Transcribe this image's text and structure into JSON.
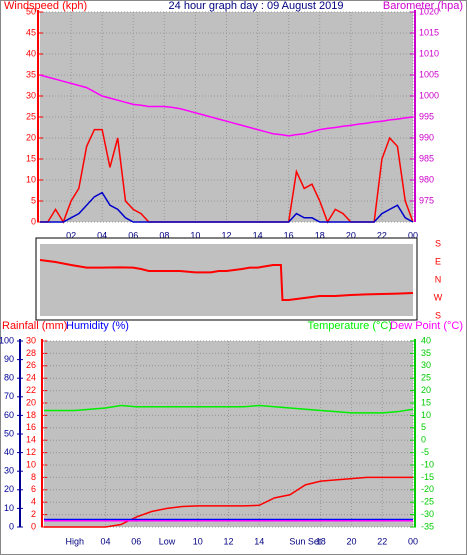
{
  "chart_data": [
    {
      "type": "line",
      "title": "24 hour graph day : 09 August 2019",
      "y_label": "Windspeed (kph)",
      "y2_label": "Barometer (hpa)",
      "ycolor": "#ff0000",
      "y2color": "#cc00cc",
      "grid": true,
      "x": [
        0,
        0.5,
        1,
        1.5,
        2,
        2.5,
        3,
        3.5,
        4,
        4.5,
        5,
        5.5,
        6,
        6.5,
        7,
        7.5,
        8,
        8.5,
        9,
        9.5,
        10,
        10.5,
        11,
        11.5,
        12,
        12.5,
        13,
        13.5,
        14,
        14.5,
        15,
        15.5,
        16,
        16.5,
        17,
        17.5,
        18,
        18.5,
        19,
        19.5,
        20,
        20.5,
        21,
        21.5,
        22,
        22.5,
        23,
        23.5,
        24
      ],
      "xlim": [
        0,
        24
      ],
      "xticks": [
        {
          "value": 2,
          "label": "02"
        },
        {
          "value": 4,
          "label": "04"
        },
        {
          "value": 6,
          "label": "06"
        },
        {
          "value": 8,
          "label": "08"
        },
        10,
        12,
        14,
        16,
        18,
        20,
        22,
        {
          "value": 24,
          "label": "00"
        }
      ],
      "ylim": [
        0,
        50
      ],
      "yticks": [
        0,
        5,
        10,
        15,
        20,
        25,
        30,
        35,
        40,
        45,
        50
      ],
      "y2lim": [
        970,
        1020
      ],
      "y2ticks": [
        975,
        980,
        985,
        990,
        995,
        1000,
        1005,
        1010,
        1015,
        1020
      ],
      "series": [
        {
          "color": "#ff0000",
          "values": [
            0,
            0,
            3,
            0,
            5,
            8,
            18,
            22,
            22,
            13,
            20,
            5,
            3,
            2,
            0,
            0,
            0,
            0,
            0,
            0,
            0,
            0,
            0,
            0,
            0,
            0,
            0,
            0,
            0,
            0,
            0,
            0,
            0,
            12,
            8,
            9,
            5,
            0,
            3,
            2,
            0,
            0,
            0,
            0,
            15,
            20,
            18,
            5,
            0
          ]
        },
        {
          "color": "#0000cc",
          "values": [
            0,
            0,
            0,
            0,
            1,
            2,
            4,
            6,
            7,
            4,
            3,
            1,
            0,
            0,
            0,
            0,
            0,
            0,
            0,
            0,
            0,
            0,
            0,
            0,
            0,
            0,
            0,
            0,
            0,
            0,
            0,
            0,
            0,
            2,
            1,
            1,
            0,
            0,
            0,
            0,
            0,
            0,
            0,
            0,
            2,
            3,
            4,
            1,
            0
          ]
        },
        {
          "color": "#ff00ff",
          "axis": "y2",
          "values": [
            1005,
            1004.5,
            1004,
            1003.5,
            1003,
            1002.5,
            1002,
            1001,
            1000,
            999.5,
            999,
            998.5,
            998,
            997.8,
            997.5,
            997.5,
            997.5,
            997.3,
            997,
            996.5,
            996,
            995.5,
            995,
            994.5,
            994,
            993.5,
            993,
            992.5,
            992,
            991.5,
            991,
            990.8,
            990.5,
            990.8,
            991,
            991.5,
            992,
            992.3,
            992.5,
            992.8,
            993,
            993.3,
            993.5,
            993.8,
            994,
            994.3,
            994.5,
            994.8,
            995
          ]
        }
      ]
    },
    {
      "type": "line",
      "ycolor": "#ff0000",
      "grid": false,
      "x": [
        0,
        1,
        2,
        3,
        4,
        5,
        6,
        6.5,
        7,
        8,
        9,
        10,
        11,
        11.5,
        12,
        13,
        13.5,
        14,
        15,
        15.5,
        15.6,
        16,
        17,
        18,
        19,
        20,
        21,
        22,
        23,
        24
      ],
      "xlim": [
        0,
        24
      ],
      "ylim": [
        -180,
        180
      ],
      "yticks": [
        {
          "value": 180,
          "label": "S"
        },
        {
          "value": 90,
          "label": "E"
        },
        {
          "value": 0,
          "label": "N"
        },
        {
          "value": -90,
          "label": "W"
        },
        {
          "value": -180,
          "label": "S"
        }
      ],
      "series": [
        {
          "color": "#ff0000",
          "values": [
            100,
            90,
            75,
            62,
            62,
            63,
            62,
            55,
            45,
            45,
            45,
            38,
            38,
            45,
            45,
            55,
            62,
            62,
            75,
            75,
            -100,
            -100,
            -90,
            -80,
            -80,
            -75,
            -72,
            -70,
            -68,
            -65
          ]
        }
      ]
    },
    {
      "type": "line",
      "ycolor": "#ff0000",
      "y2color": "#00cc00",
      "y3color": "#000099",
      "grid": true,
      "x": [
        0,
        1,
        2,
        3,
        4,
        5,
        6,
        7,
        8,
        9,
        10,
        11,
        12,
        13,
        14,
        15,
        16,
        17,
        18,
        19,
        20,
        21,
        22,
        23,
        24
      ],
      "xlim": [
        0,
        24
      ],
      "xticks": [
        {
          "value": 4,
          "label": "04"
        },
        {
          "value": 6,
          "label": "06"
        },
        10,
        12,
        14,
        18,
        20,
        22,
        {
          "value": 24,
          "label": "00"
        }
      ],
      "ylim": [
        0,
        30
      ],
      "yticks": [
        0,
        2,
        4,
        6,
        8,
        10,
        12,
        14,
        16,
        18,
        20,
        22,
        24,
        26,
        28,
        30
      ],
      "y2lim": [
        -35,
        40
      ],
      "y2ticks": [
        -35,
        -30,
        -25,
        -20,
        -15,
        -10,
        -5,
        0,
        5,
        10,
        15,
        20,
        25,
        30,
        35,
        40
      ],
      "y3lim": [
        0,
        100
      ],
      "y3ticks": [
        0,
        10,
        20,
        30,
        40,
        50,
        60,
        70,
        80,
        90,
        100
      ],
      "annotations": [
        {
          "text": "High",
          "x": 2
        },
        {
          "text": "Low",
          "x": 8
        },
        {
          "text": "Sun Set",
          "x": 17
        }
      ],
      "series": [
        {
          "name": "Rainfall (mm)",
          "color": "#ff0000",
          "values": [
            0,
            0,
            0,
            0,
            0,
            0.4,
            1.6,
            2.5,
            3,
            3.3,
            3.4,
            3.4,
            3.4,
            3.4,
            3.5,
            4.7,
            5.2,
            6.8,
            7.4,
            7.6,
            7.8,
            8,
            8,
            8,
            8
          ]
        },
        {
          "name": "Humidity (%)",
          "color": "#0000ff",
          "axis": "y3",
          "values": [
            4,
            4,
            4,
            4,
            4,
            4,
            4,
            4,
            4,
            4,
            4,
            4,
            4,
            4,
            4,
            4,
            4,
            4,
            4,
            4,
            4,
            4,
            4,
            4,
            4
          ]
        },
        {
          "name": "Temperature (°C)",
          "color": "#00ee00",
          "axis": "y2",
          "values": [
            12,
            12,
            12,
            12.5,
            13,
            14,
            13.5,
            13.5,
            13.5,
            13.5,
            13.5,
            13.5,
            13.5,
            13.5,
            14,
            13.5,
            13,
            12.5,
            12,
            11.5,
            11,
            11,
            11,
            11.5,
            12.5
          ]
        },
        {
          "name": "Dew Point (°C)",
          "color": "#ff00ff",
          "axis": "y2",
          "values": [
            -32.5,
            -32.5,
            -32.5,
            -32.5,
            -32.5,
            -32.5,
            -32.5,
            -32.5,
            -32.5,
            -32.5,
            -32.5,
            -32.5,
            -32.5,
            -32.5,
            -32.5,
            -32.5,
            -32.5,
            -32.5,
            -32.5,
            -32.5,
            -32.5,
            -32.5,
            -32.5,
            -32.5,
            -32.5
          ]
        }
      ]
    }
  ]
}
